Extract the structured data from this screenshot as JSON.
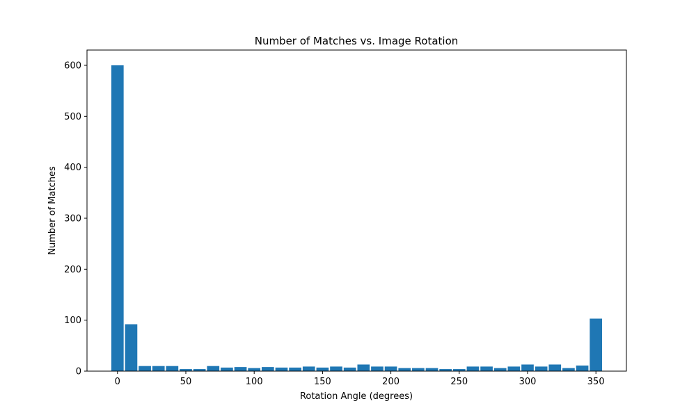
{
  "chart_data": {
    "type": "bar",
    "title": "Number of Matches vs. Image Rotation",
    "xlabel": "Rotation Angle (degrees)",
    "ylabel": "Number of Matches",
    "x": [
      0,
      10,
      20,
      30,
      40,
      50,
      60,
      70,
      80,
      90,
      100,
      110,
      120,
      130,
      140,
      150,
      160,
      170,
      180,
      190,
      200,
      210,
      220,
      230,
      240,
      250,
      260,
      270,
      280,
      290,
      300,
      310,
      320,
      330,
      340,
      350
    ],
    "values": [
      600,
      92,
      10,
      10,
      10,
      4,
      4,
      10,
      7,
      8,
      6,
      8,
      7,
      7,
      9,
      7,
      9,
      7,
      13,
      9,
      9,
      6,
      6,
      6,
      4,
      4,
      9,
      9,
      6,
      9,
      13,
      9,
      13,
      6,
      11,
      103
    ],
    "xlim": [
      -22.3,
      372.3
    ],
    "ylim": [
      0,
      630
    ],
    "xticks": [
      0,
      50,
      100,
      150,
      200,
      250,
      300,
      350
    ],
    "yticks": [
      0,
      100,
      200,
      300,
      400,
      500,
      600
    ],
    "bar_width": 9,
    "bar_color": "#1f77b4",
    "grid": false
  }
}
